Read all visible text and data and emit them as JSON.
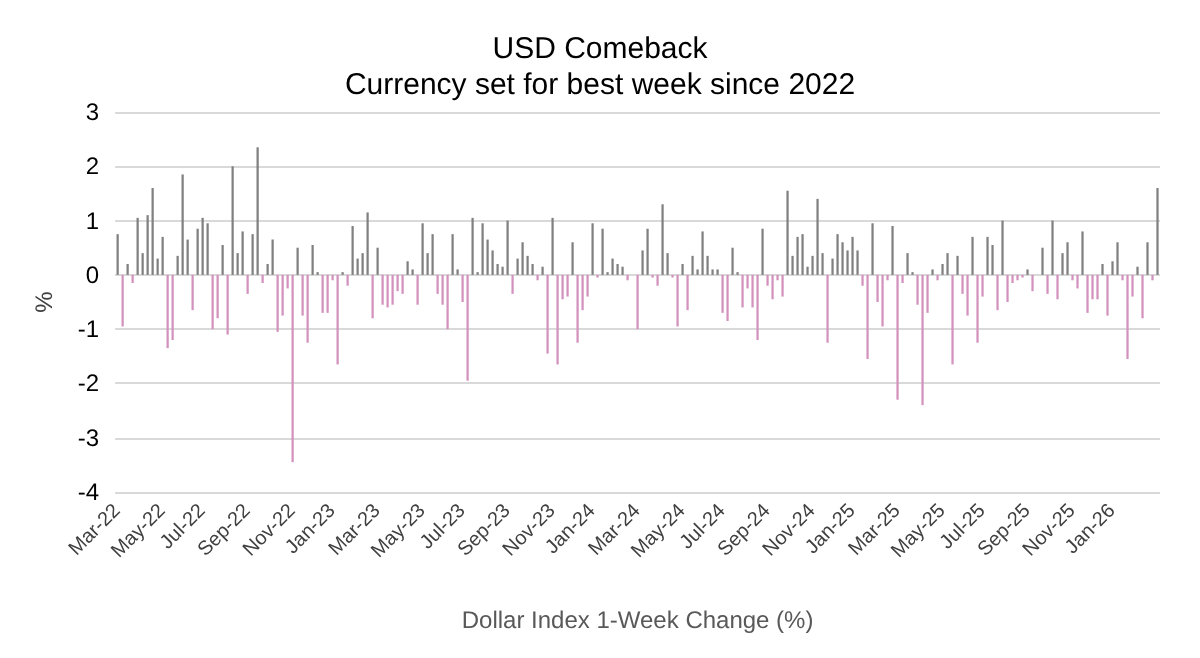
{
  "chart_data": {
    "type": "bar",
    "title": "USD Comeback",
    "subtitle": "Currency set for best week since 2022",
    "xlabel": "Dollar Index 1-Week Change (%)",
    "ylabel": "%",
    "categories": [
      "Mar-22",
      null,
      null,
      null,
      null,
      null,
      null,
      null,
      null,
      "May-22",
      null,
      null,
      null,
      null,
      null,
      null,
      null,
      "Jul-22",
      null,
      null,
      null,
      null,
      null,
      null,
      null,
      null,
      "Sep-22",
      null,
      null,
      null,
      null,
      null,
      null,
      null,
      null,
      "Nov-22",
      null,
      null,
      null,
      null,
      null,
      null,
      null,
      "Jan-23",
      null,
      null,
      null,
      null,
      null,
      null,
      null,
      null,
      "Mar-23",
      null,
      null,
      null,
      null,
      null,
      null,
      null,
      null,
      "May-23",
      null,
      null,
      null,
      null,
      null,
      null,
      null,
      "Jul-23",
      null,
      null,
      null,
      null,
      null,
      null,
      null,
      null,
      "Sep-23",
      null,
      null,
      null,
      null,
      null,
      null,
      null,
      null,
      "Nov-23",
      null,
      null,
      null,
      null,
      null,
      null,
      null,
      "Jan-24",
      null,
      null,
      null,
      null,
      null,
      null,
      null,
      null,
      "Mar-24",
      null,
      null,
      null,
      null,
      null,
      null,
      null,
      null,
      "May-24",
      null,
      null,
      null,
      null,
      null,
      null,
      null,
      "Jul-24",
      null,
      null,
      null,
      null,
      null,
      null,
      null,
      null,
      "Sep-24",
      null,
      null,
      null,
      null,
      null,
      null,
      null,
      null,
      "Nov-24",
      null,
      null,
      null,
      null,
      null,
      null,
      null,
      "Jan-25",
      null,
      null,
      null,
      null,
      null,
      null,
      null,
      null,
      "Mar-25",
      null,
      null,
      null,
      null,
      null,
      null,
      null,
      null,
      "May-25",
      null,
      null,
      null,
      null,
      null,
      null,
      null,
      "Jul-25",
      null,
      null,
      null,
      null,
      null,
      null,
      null,
      null,
      "Sep-25",
      null,
      null,
      null,
      null,
      null,
      null,
      null,
      null,
      "Nov-25",
      null,
      null,
      null,
      null,
      null,
      null,
      null,
      "Jan-26",
      null,
      null,
      null,
      null,
      null,
      null,
      null,
      null,
      null
    ],
    "values": [
      0.75,
      -0.95,
      0.2,
      -0.15,
      1.05,
      0.4,
      1.1,
      1.6,
      0.3,
      0.7,
      -1.35,
      -1.2,
      0.35,
      1.85,
      0.65,
      -0.65,
      0.85,
      1.05,
      0.95,
      -1.0,
      -0.8,
      0.55,
      -1.1,
      2.0,
      0.4,
      0.8,
      -0.35,
      0.75,
      2.35,
      -0.15,
      0.2,
      0.65,
      -1.05,
      -0.75,
      -0.25,
      -3.45,
      0.5,
      -0.75,
      -1.25,
      0.55,
      0.05,
      -0.7,
      -0.7,
      -0.1,
      -1.65,
      0.05,
      -0.2,
      0.9,
      0.3,
      0.4,
      1.15,
      -0.8,
      0.5,
      -0.55,
      -0.6,
      -0.55,
      -0.3,
      -0.35,
      0.25,
      0.1,
      -0.55,
      0.95,
      0.4,
      0.75,
      -0.35,
      -0.55,
      -1.0,
      0.75,
      0.1,
      -0.5,
      -1.95,
      1.05,
      0.05,
      0.95,
      0.65,
      0.45,
      0.2,
      0.15,
      1.0,
      -0.35,
      0.3,
      0.6,
      0.35,
      0.2,
      -0.1,
      0.15,
      -1.45,
      1.05,
      -1.65,
      -0.45,
      -0.4,
      0.6,
      -1.25,
      -0.65,
      -0.4,
      0.95,
      -0.05,
      0.85,
      0.05,
      0.3,
      0.2,
      0.15,
      -0.1,
      0,
      -1.0,
      0.45,
      0.85,
      -0.05,
      -0.2,
      1.3,
      0.4,
      -0.05,
      -0.95,
      0.2,
      -0.65,
      0.35,
      0.1,
      0.8,
      0.35,
      0.1,
      0.1,
      -0.7,
      -0.85,
      0.5,
      0.05,
      -0.6,
      -0.25,
      -0.6,
      -1.2,
      0.85,
      -0.2,
      -0.45,
      -0.1,
      -0.4,
      1.55,
      0.35,
      0.7,
      0.75,
      0.15,
      0.35,
      1.4,
      0.4,
      -1.25,
      0.3,
      0.75,
      0.6,
      0.45,
      0.7,
      0.45,
      -0.2,
      -1.55,
      0.95,
      -0.5,
      -0.95,
      -0.1,
      0.9,
      -2.3,
      -0.15,
      0.4,
      0.05,
      -0.55,
      -2.4,
      -0.7,
      0.1,
      -0.1,
      0.2,
      0.4,
      -1.65,
      0.35,
      -0.35,
      -0.75,
      0.7,
      -1.25,
      -0.4,
      0.7,
      0.55,
      -0.65,
      1.0,
      -0.5,
      -0.15,
      -0.1,
      -0.05,
      0.1,
      -0.3,
      0,
      0.5,
      -0.35,
      1.0,
      -0.45,
      0.4,
      0.6,
      -0.1,
      -0.25,
      0.8,
      -0.7,
      -0.45,
      -0.45,
      0.2,
      -0.75,
      0.25,
      0.6,
      -0.1,
      -1.55,
      -0.4,
      0.15,
      -0.8,
      0.6,
      -0.1,
      1.6
    ],
    "colors": [
      "#808080",
      "#d391bd",
      "#808080",
      "#d391bd",
      "#808080",
      "#808080",
      "#808080",
      "#808080",
      "#808080",
      "#808080",
      "#d391bd",
      "#d391bd",
      "#808080",
      "#808080",
      "#808080",
      "#d391bd",
      "#808080",
      "#808080",
      "#808080",
      "#d391bd",
      "#d391bd",
      "#808080",
      "#d391bd",
      "#808080",
      "#808080",
      "#808080",
      "#d391bd",
      "#808080",
      "#808080",
      "#d391bd",
      "#808080",
      "#808080",
      "#d391bd",
      "#d391bd",
      "#d391bd",
      "#d391bd",
      "#808080",
      "#d391bd",
      "#d391bd",
      "#808080",
      "#808080",
      "#d391bd",
      "#d391bd",
      "#d391bd",
      "#d391bd",
      "#808080",
      "#d391bd",
      "#808080",
      "#808080",
      "#808080",
      "#808080",
      "#d391bd",
      "#808080",
      "#d391bd",
      "#d391bd",
      "#d391bd",
      "#d391bd",
      "#d391bd",
      "#808080",
      "#808080",
      "#d391bd",
      "#808080",
      "#808080",
      "#808080",
      "#d391bd",
      "#d391bd",
      "#d391bd",
      "#808080",
      "#808080",
      "#d391bd",
      "#d391bd",
      "#808080",
      "#808080",
      "#808080",
      "#808080",
      "#808080",
      "#808080",
      "#808080",
      "#808080",
      "#d391bd",
      "#808080",
      "#808080",
      "#808080",
      "#808080",
      "#d391bd",
      "#808080",
      "#d391bd",
      "#808080",
      "#d391bd",
      "#d391bd",
      "#d391bd",
      "#808080",
      "#d391bd",
      "#d391bd",
      "#d391bd",
      "#808080",
      "#d391bd",
      "#808080",
      "#808080",
      "#808080",
      "#808080",
      "#808080",
      "#d391bd",
      "#808080",
      "#d391bd",
      "#808080",
      "#808080",
      "#d391bd",
      "#d391bd",
      "#808080",
      "#808080",
      "#d391bd",
      "#d391bd",
      "#808080",
      "#d391bd",
      "#808080",
      "#808080",
      "#808080",
      "#808080",
      "#808080",
      "#808080",
      "#d391bd",
      "#d391bd",
      "#808080",
      "#808080",
      "#d391bd",
      "#d391bd",
      "#d391bd",
      "#d391bd",
      "#808080",
      "#d391bd",
      "#d391bd",
      "#d391bd",
      "#d391bd",
      "#808080",
      "#808080",
      "#808080",
      "#808080",
      "#808080",
      "#808080",
      "#808080",
      "#808080",
      "#d391bd",
      "#808080",
      "#808080",
      "#808080",
      "#808080",
      "#808080",
      "#808080",
      "#d391bd",
      "#d391bd",
      "#808080",
      "#d391bd",
      "#d391bd",
      "#d391bd",
      "#808080",
      "#d391bd",
      "#d391bd",
      "#808080",
      "#808080",
      "#d391bd",
      "#d391bd",
      "#d391bd",
      "#808080",
      "#d391bd",
      "#808080",
      "#808080",
      "#d391bd",
      "#808080",
      "#d391bd",
      "#d391bd",
      "#808080",
      "#d391bd",
      "#d391bd",
      "#808080",
      "#808080",
      "#d391bd",
      "#808080",
      "#d391bd",
      "#d391bd",
      "#d391bd",
      "#d391bd",
      "#808080",
      "#d391bd",
      "#808080",
      "#808080",
      "#d391bd",
      "#808080",
      "#d391bd",
      "#808080",
      "#808080",
      "#d391bd",
      "#d391bd",
      "#808080",
      "#d391bd",
      "#d391bd",
      "#d391bd",
      "#808080",
      "#d391bd",
      "#808080",
      "#808080",
      "#d391bd",
      "#d391bd",
      "#d391bd",
      "#808080",
      "#d391bd",
      "#808080",
      "#d391bd",
      "#808080"
    ],
    "ylim": [
      -4,
      3
    ],
    "yticks": [
      -4,
      -3,
      -2,
      -1,
      0,
      1,
      2,
      3
    ],
    "grid": "y"
  }
}
